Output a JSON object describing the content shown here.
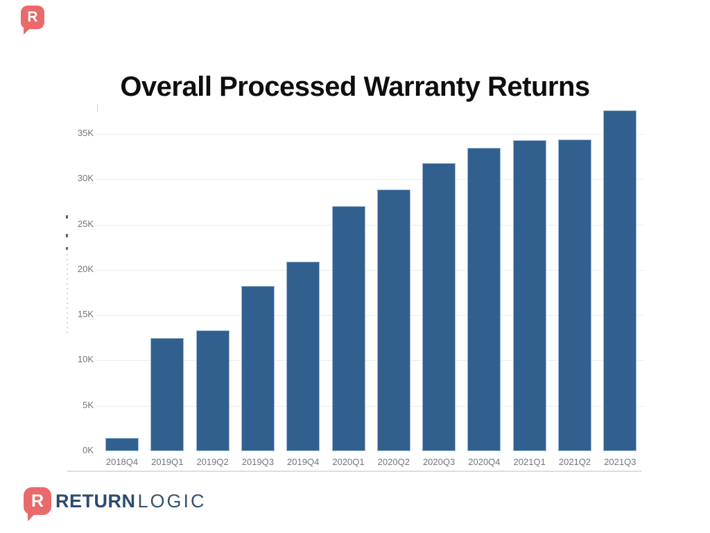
{
  "title": "Overall Processed Warranty Returns",
  "brand": {
    "mark_letter": "R",
    "name_bold": "RETURN",
    "name_light": "LOGIC",
    "mark_color": "#E96A6B",
    "text_bold_color": "#2B4A6F",
    "text_light_color": "#33536F"
  },
  "chart_data": {
    "type": "bar",
    "title": "Overall Processed Warranty Returns",
    "categories": [
      "2018Q4",
      "2019Q1",
      "2019Q2",
      "2019Q3",
      "2019Q4",
      "2020Q1",
      "2020Q2",
      "2020Q3",
      "2020Q4",
      "2021Q1",
      "2021Q2",
      "2021Q3"
    ],
    "values": [
      1450,
      12500,
      13300,
      18200,
      20900,
      27000,
      28900,
      31800,
      33500,
      34300,
      34400,
      37600
    ],
    "xlabel": "",
    "ylabel": "",
    "yticks": [
      {
        "label": "0K",
        "value": 0
      },
      {
        "label": "5K",
        "value": 5000
      },
      {
        "label": "10K",
        "value": 10000
      },
      {
        "label": "15K",
        "value": 15000
      },
      {
        "label": "20K",
        "value": 20000
      },
      {
        "label": "25K",
        "value": 25000
      },
      {
        "label": "30K",
        "value": 30000
      },
      {
        "label": "35K",
        "value": 35000
      }
    ],
    "ylim": [
      0,
      38500
    ],
    "grid": true,
    "legend": false,
    "bar_color": "#32608E",
    "bar_border_color": "#9ab9d6",
    "gridline_color": "#ececee",
    "tick_label_color": "#71767b"
  }
}
